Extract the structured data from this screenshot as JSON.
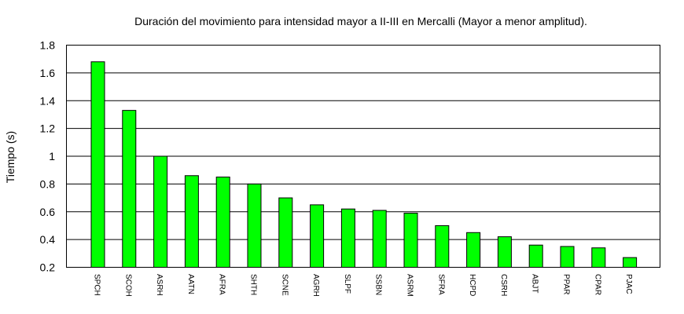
{
  "chart_data": {
    "type": "bar",
    "title": "Duración del movimiento para intensidad mayor a II-III en Mercalli (Mayor a menor amplitud).",
    "xlabel": "",
    "ylabel": "Tiempo (s)",
    "ylim": [
      0.2,
      1.8
    ],
    "yticks": [
      "0.2",
      "0.4",
      "0.6",
      "0.8",
      "1",
      "1.2",
      "1.4",
      "1.6",
      "1.8"
    ],
    "grid": true,
    "bar_color": "#00ff00",
    "categories": [
      "SPCH",
      "SCOH",
      "ASRH",
      "AATN",
      "AFRA",
      "SHTH",
      "SCNE",
      "AGRH",
      "SLPF",
      "SSBN",
      "ASRM",
      "SFRA",
      "HCPD",
      "CSRH",
      "ABJT",
      "PPAR",
      "CPAR",
      "PJAC"
    ],
    "values": [
      1.68,
      1.33,
      1.0,
      0.86,
      0.85,
      0.8,
      0.7,
      0.65,
      0.62,
      0.61,
      0.59,
      0.5,
      0.45,
      0.42,
      0.36,
      0.35,
      0.34,
      0.27
    ]
  }
}
